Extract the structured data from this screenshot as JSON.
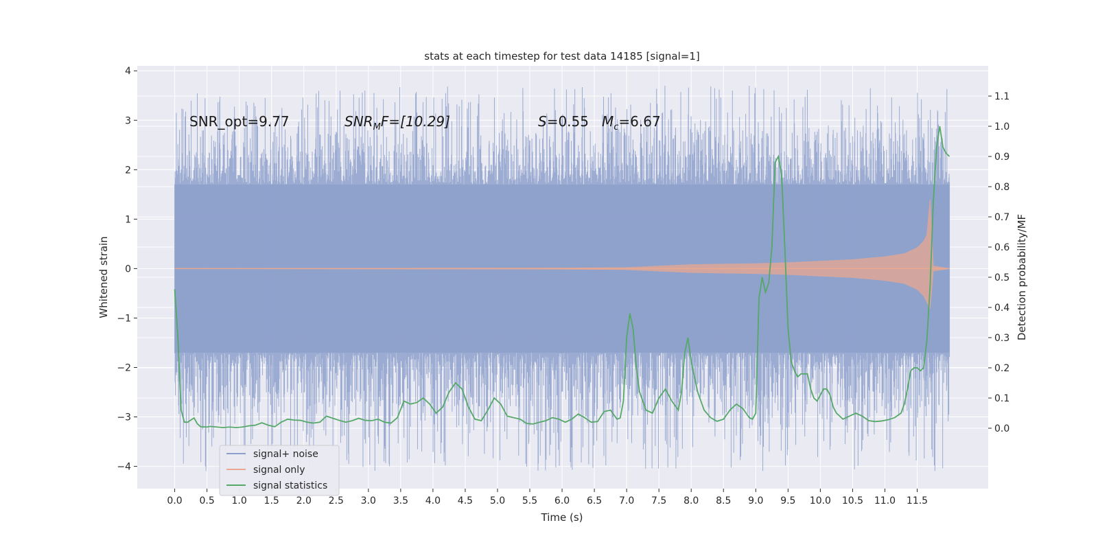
{
  "chart_data": {
    "type": "line",
    "title": "stats at each timestep for test data 14185 [signal=1]",
    "xlabel": "Time (s)",
    "ylabel_left": "Whitened strain",
    "ylabel_right": "Detection probability/MF",
    "xlim": [
      -0.58,
      12.6
    ],
    "ylim_left": [
      -4.45,
      4.1
    ],
    "ylim_right": [
      -0.2,
      1.2
    ],
    "x_ticks": [
      0.0,
      0.5,
      1.0,
      1.5,
      2.0,
      2.5,
      3.0,
      3.5,
      4.0,
      4.5,
      5.0,
      5.5,
      6.0,
      6.5,
      7.0,
      7.5,
      8.0,
      8.5,
      9.0,
      9.5,
      10.0,
      10.5,
      11.0,
      11.5
    ],
    "x_tick_labels": [
      "0.0",
      "0.5",
      "1.0",
      "1.5",
      "2.0",
      "2.5",
      "3.0",
      "3.5",
      "4.0",
      "4.5",
      "5.0",
      "5.5",
      "6.0",
      "6.5",
      "7.0",
      "7.5",
      "8.0",
      "8.5",
      "9.0",
      "9.5",
      "10.0",
      "10.5",
      "11.0",
      "11.5"
    ],
    "y_left_ticks": [
      -4,
      -3,
      -2,
      -1,
      0,
      1,
      2,
      3,
      4
    ],
    "y_left_tick_labels": [
      "−4",
      "−3",
      "−2",
      "−1",
      "0",
      "1",
      "2",
      "3",
      "4"
    ],
    "y_right_ticks": [
      0.0,
      0.1,
      0.2,
      0.3,
      0.4,
      0.5,
      0.6,
      0.7,
      0.8,
      0.9,
      1.0,
      1.1
    ],
    "y_right_tick_labels": [
      "0.0",
      "0.1",
      "0.2",
      "0.3",
      "0.4",
      "0.5",
      "0.6",
      "0.7",
      "0.8",
      "0.9",
      "1.0",
      "1.1"
    ],
    "grid": true,
    "legend_position": "lower-left",
    "annotations": {
      "snr_opt": "SNR_opt=9.77",
      "snr_mf_sym": "SNR",
      "snr_mf_sub": "M",
      "snr_mf_rest": "F=[10.29]",
      "s_sym": "S",
      "s_rest": "=0.55",
      "mc_sym": "M",
      "mc_sub": "c",
      "mc_rest": "=6.67"
    },
    "series": [
      {
        "name": "signal+ noise",
        "color": "#8da0cb",
        "axis": "left",
        "kind": "noise-band",
        "x_range": [
          0.0,
          12.0
        ],
        "envelope_upper": 1.7,
        "envelope_lower": -1.7,
        "peak_max": 3.7,
        "peak_min": -4.1
      },
      {
        "name": "signal only",
        "color": "#e9a88f",
        "axis": "left",
        "kind": "chirp",
        "x": [
          0.0,
          6.0,
          7.0,
          7.5,
          8.0,
          8.5,
          9.0,
          9.5,
          10.0,
          10.5,
          11.0,
          11.3,
          11.5,
          11.6,
          11.65,
          11.7,
          11.75,
          12.0
        ],
        "amplitude": [
          0.0,
          0.01,
          0.02,
          0.05,
          0.08,
          0.09,
          0.1,
          0.12,
          0.15,
          0.18,
          0.24,
          0.3,
          0.42,
          0.55,
          0.68,
          1.4,
          0.05,
          0.0
        ]
      },
      {
        "name": "signal statistics",
        "color": "#55a868",
        "axis": "right",
        "kind": "line",
        "x": [
          0.0,
          0.05,
          0.1,
          0.15,
          0.2,
          0.3,
          0.35,
          0.4,
          0.5,
          0.55,
          0.65,
          0.75,
          0.85,
          0.95,
          1.05,
          1.15,
          1.25,
          1.35,
          1.45,
          1.55,
          1.65,
          1.75,
          1.85,
          1.95,
          2.05,
          2.15,
          2.25,
          2.35,
          2.45,
          2.55,
          2.65,
          2.75,
          2.85,
          2.95,
          3.05,
          3.15,
          3.25,
          3.35,
          3.45,
          3.55,
          3.65,
          3.75,
          3.85,
          3.95,
          4.05,
          4.15,
          4.25,
          4.35,
          4.45,
          4.55,
          4.65,
          4.75,
          4.85,
          4.95,
          5.05,
          5.15,
          5.25,
          5.35,
          5.45,
          5.55,
          5.65,
          5.75,
          5.85,
          5.95,
          6.05,
          6.15,
          6.25,
          6.35,
          6.45,
          6.55,
          6.65,
          6.75,
          6.85,
          6.9,
          6.95,
          7.0,
          7.05,
          7.1,
          7.15,
          7.2,
          7.3,
          7.4,
          7.5,
          7.6,
          7.7,
          7.8,
          7.85,
          7.9,
          7.95,
          8.0,
          8.1,
          8.2,
          8.3,
          8.4,
          8.5,
          8.6,
          8.7,
          8.8,
          8.9,
          8.95,
          9.0,
          9.05,
          9.1,
          9.15,
          9.2,
          9.25,
          9.3,
          9.35,
          9.4,
          9.45,
          9.5,
          9.55,
          9.6,
          9.65,
          9.7,
          9.75,
          9.8,
          9.85,
          9.9,
          9.95,
          10.0,
          10.05,
          10.1,
          10.15,
          10.2,
          10.25,
          10.3,
          10.35,
          10.45,
          10.55,
          10.65,
          10.75,
          10.85,
          10.95,
          11.05,
          11.15,
          11.25,
          11.3,
          11.35,
          11.4,
          11.45,
          11.5,
          11.55,
          11.6,
          11.65,
          11.7,
          11.75,
          11.8,
          11.85,
          11.9,
          11.95,
          12.0
        ],
        "y": [
          0.46,
          0.3,
          0.06,
          0.02,
          0.02,
          0.034,
          0.015,
          0.005,
          0.004,
          0.006,
          0.004,
          0.002,
          0.004,
          0.002,
          0.004,
          0.008,
          0.01,
          0.018,
          0.01,
          0.005,
          0.02,
          0.03,
          0.027,
          0.026,
          0.02,
          0.017,
          0.02,
          0.04,
          0.033,
          0.026,
          0.02,
          0.025,
          0.033,
          0.026,
          0.025,
          0.03,
          0.02,
          0.017,
          0.035,
          0.09,
          0.08,
          0.085,
          0.1,
          0.08,
          0.05,
          0.07,
          0.12,
          0.15,
          0.13,
          0.07,
          0.03,
          0.025,
          0.06,
          0.1,
          0.08,
          0.04,
          0.035,
          0.03,
          0.016,
          0.014,
          0.02,
          0.025,
          0.035,
          0.03,
          0.02,
          0.03,
          0.047,
          0.035,
          0.02,
          0.022,
          0.055,
          0.06,
          0.03,
          0.034,
          0.09,
          0.3,
          0.38,
          0.33,
          0.2,
          0.12,
          0.06,
          0.05,
          0.1,
          0.13,
          0.09,
          0.06,
          0.12,
          0.25,
          0.3,
          0.22,
          0.12,
          0.06,
          0.035,
          0.023,
          0.03,
          0.06,
          0.08,
          0.065,
          0.035,
          0.03,
          0.05,
          0.43,
          0.5,
          0.45,
          0.48,
          0.6,
          0.88,
          0.9,
          0.84,
          0.6,
          0.33,
          0.22,
          0.19,
          0.17,
          0.18,
          0.18,
          0.18,
          0.13,
          0.1,
          0.09,
          0.11,
          0.13,
          0.13,
          0.11,
          0.07,
          0.05,
          0.04,
          0.03,
          0.04,
          0.05,
          0.04,
          0.025,
          0.022,
          0.024,
          0.028,
          0.035,
          0.05,
          0.08,
          0.13,
          0.19,
          0.2,
          0.2,
          0.19,
          0.2,
          0.29,
          0.47,
          0.75,
          0.93,
          1.0,
          0.93,
          0.91,
          0.9
        ]
      }
    ]
  }
}
